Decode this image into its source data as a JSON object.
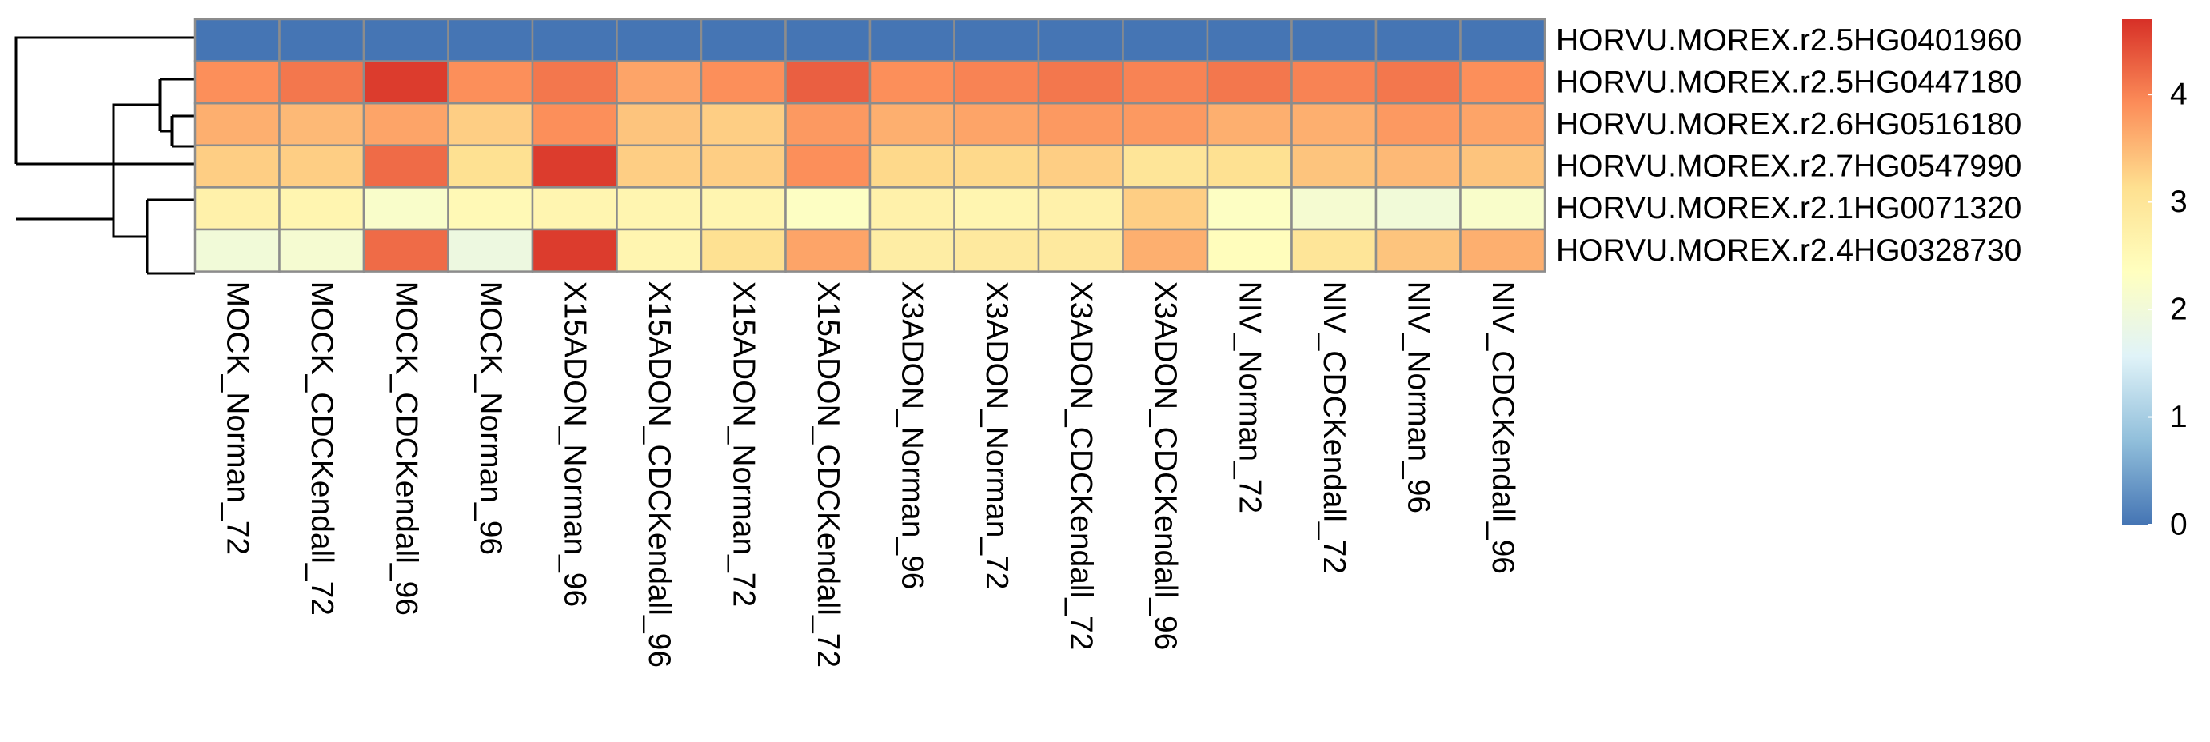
{
  "chart_data": {
    "type": "heatmap",
    "title": "",
    "columns": [
      "MOCK_Norman_72",
      "MOCK_CDCKendall_72",
      "MOCK_CDCKendall_96",
      "MOCK_Norman_96",
      "X15ADON_Norman_96",
      "X15ADON_CDCKendall_96",
      "X15ADON_Norman_72",
      "X15ADON_CDCKendall_72",
      "X3ADON_Norman_96",
      "X3ADON_Norman_72",
      "X3ADON_CDCKendall_72",
      "X3ADON_CDCKendall_96",
      "NIV_Norman_72",
      "NIV_CDCKendall_72",
      "NIV_Norman_96",
      "NIV_CDCKendall_96"
    ],
    "rows": [
      "HORVU.MOREX.r2.5HG0401960",
      "HORVU.MOREX.r2.5HG0447180",
      "HORVU.MOREX.r2.6HG0516180",
      "HORVU.MOREX.r2.7HG0547990",
      "HORVU.MOREX.r2.1HG0071320",
      "HORVU.MOREX.r2.4HG0328730"
    ],
    "values": [
      [
        0.0,
        0.0,
        0.0,
        0.0,
        0.0,
        0.0,
        0.0,
        0.0,
        0.0,
        0.0,
        0.0,
        0.0,
        0.0,
        0.0,
        0.0,
        0.0
      ],
      [
        3.9,
        4.1,
        4.6,
        3.9,
        4.1,
        3.7,
        3.9,
        4.3,
        3.9,
        4.0,
        4.1,
        4.0,
        4.1,
        4.0,
        4.1,
        3.9
      ],
      [
        3.6,
        3.5,
        3.7,
        3.3,
        3.9,
        3.4,
        3.3,
        3.8,
        3.6,
        3.7,
        3.8,
        3.8,
        3.6,
        3.6,
        3.8,
        3.7
      ],
      [
        3.3,
        3.3,
        4.2,
        3.1,
        4.6,
        3.3,
        3.3,
        3.9,
        3.2,
        3.2,
        3.3,
        3.0,
        3.1,
        3.4,
        3.5,
        3.4
      ],
      [
        2.7,
        2.6,
        2.2,
        2.5,
        2.6,
        2.6,
        2.6,
        2.3,
        2.7,
        2.6,
        2.7,
        3.3,
        2.3,
        2.1,
        2.0,
        2.2
      ],
      [
        2.0,
        2.1,
        4.2,
        1.9,
        4.6,
        2.6,
        3.1,
        3.7,
        2.8,
        2.9,
        2.9,
        3.6,
        2.4,
        3.0,
        3.4,
        3.6
      ]
    ],
    "colorbar": {
      "ticks": [
        "0",
        "1",
        "2",
        "3",
        "4"
      ],
      "min": 0,
      "max": 4.7,
      "palette": [
        "#4575B4",
        "#91BFDB",
        "#E0F3F8",
        "#FFFFBF",
        "#FEE090",
        "#FC8D59",
        "#D73027"
      ]
    },
    "row_dendrogram": true,
    "grid_color": "#8C8C8C"
  }
}
